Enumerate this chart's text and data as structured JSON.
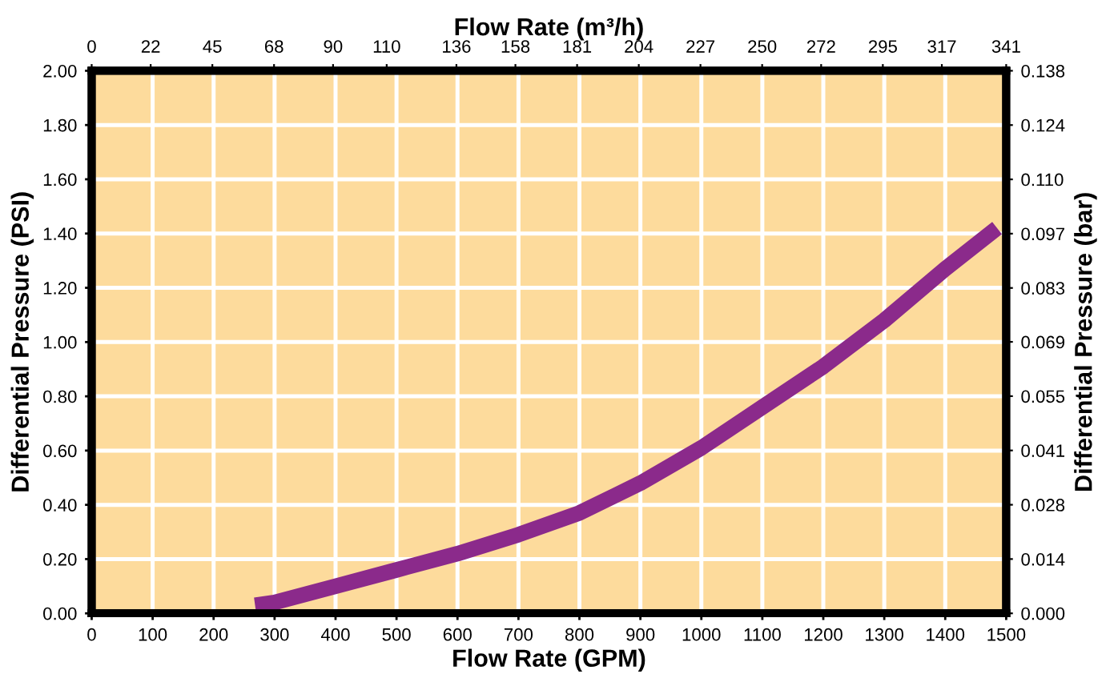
{
  "chart_data": {
    "type": "line",
    "xlabel": "Flow Rate (GPM)",
    "x2label": "Flow Rate (m³/h)",
    "ylabel": "Differential Pressure (PSI)",
    "y2label": "Differential Pressure (bar)",
    "x": [
      268,
      300,
      400,
      500,
      600,
      700,
      800,
      900,
      1000,
      1100,
      1200,
      1300,
      1400,
      1485
    ],
    "series": [
      {
        "color": "#8b2a8b",
        "values": [
          0.03,
          0.04,
          0.1,
          0.16,
          0.22,
          0.29,
          0.37,
          0.48,
          0.61,
          0.76,
          0.91,
          1.08,
          1.27,
          1.42
        ]
      }
    ],
    "xlim": [
      0,
      1500
    ],
    "xticks": [
      0,
      100,
      200,
      300,
      400,
      500,
      600,
      700,
      800,
      900,
      1000,
      1100,
      1200,
      1300,
      1400,
      1500
    ],
    "ylim": [
      0,
      2
    ],
    "yticks": [
      {
        "value": 0,
        "label": "0.00"
      },
      {
        "value": 0.2,
        "label": "0.20"
      },
      {
        "value": 0.4,
        "label": "0.40"
      },
      {
        "value": 0.6,
        "label": "0.60"
      },
      {
        "value": 0.8,
        "label": "0.80"
      },
      {
        "value": 1.0,
        "label": "1.00"
      },
      {
        "value": 1.2,
        "label": "1.20"
      },
      {
        "value": 1.4,
        "label": "1.40"
      },
      {
        "value": 1.6,
        "label": "1.60"
      },
      {
        "value": 1.8,
        "label": "1.80"
      },
      {
        "value": 2.0,
        "label": "2.00"
      }
    ],
    "x2lim": [
      0,
      341
    ],
    "x2ticks": [
      0,
      22,
      45,
      68,
      90,
      110,
      136,
      158,
      181,
      204,
      227,
      250,
      272,
      295,
      317,
      341
    ],
    "y2lim": [
      0,
      0.1379
    ],
    "y2ticks": [
      {
        "value": 0,
        "label": "0.000"
      },
      {
        "value": 0.0138,
        "label": "0.014"
      },
      {
        "value": 0.0276,
        "label": "0.028"
      },
      {
        "value": 0.0414,
        "label": "0.041"
      },
      {
        "value": 0.0552,
        "label": "0.055"
      },
      {
        "value": 0.069,
        "label": "0.069"
      },
      {
        "value": 0.0827,
        "label": "0.083"
      },
      {
        "value": 0.0965,
        "label": "0.097"
      },
      {
        "value": 0.1103,
        "label": "0.110"
      },
      {
        "value": 0.1241,
        "label": "0.124"
      },
      {
        "value": 0.1379,
        "label": "0.138"
      }
    ],
    "grid": true,
    "marker": "none",
    "line_style": "solid",
    "legend": false
  }
}
